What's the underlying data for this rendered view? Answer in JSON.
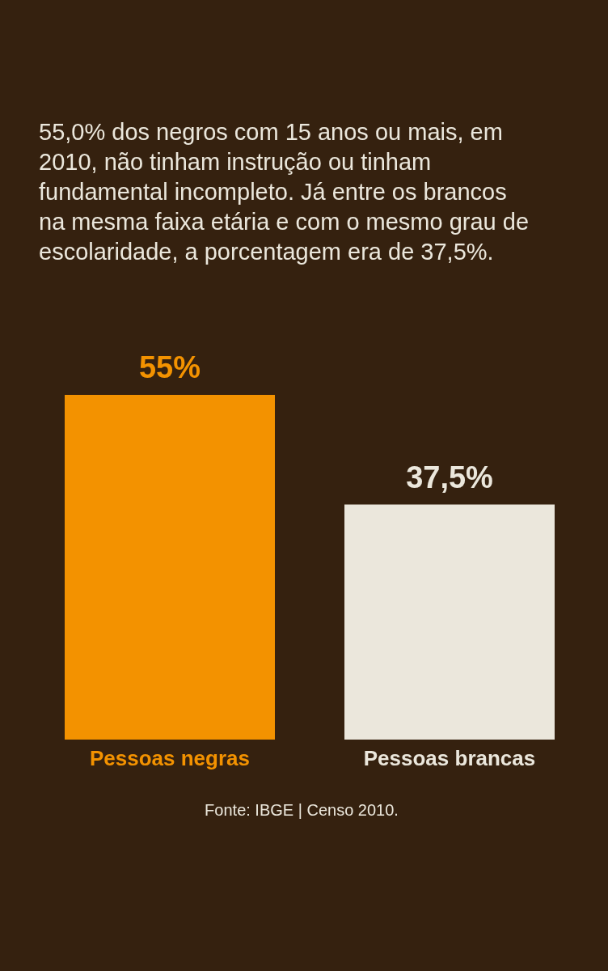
{
  "chart_data": {
    "type": "bar",
    "title": "55,0% dos negros com 15 anos ou mais, em 2010, não tinham instrução ou tinham fundamental incompleto. Já entre os brancos na mesma faixa etária e com o mesmo grau de escolaridade, a porcentagem era de 37,5%.",
    "categories": [
      "Pessoas negras",
      "Pessoas brancas"
    ],
    "values": [
      55,
      37.5
    ],
    "value_labels": [
      "55%",
      "37,5%"
    ],
    "colors": [
      "#f39200",
      "#ebe7dc"
    ],
    "annotations": [
      "Fonte: IBGE | Censo 2010."
    ]
  }
}
